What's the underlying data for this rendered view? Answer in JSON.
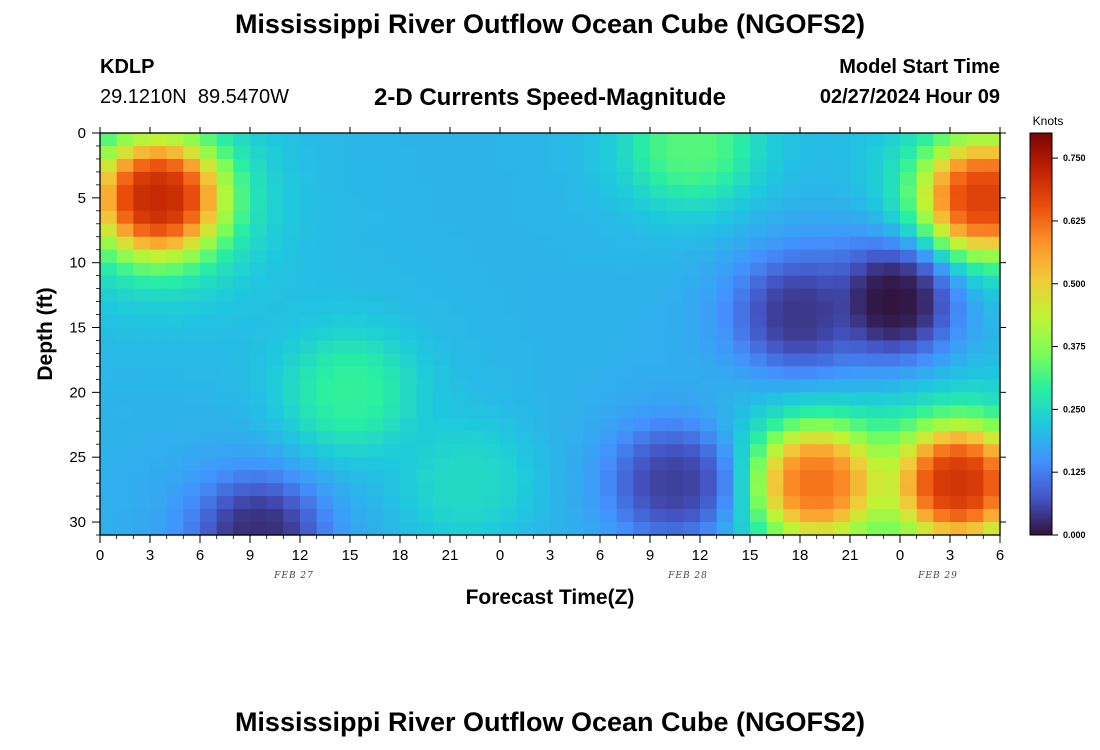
{
  "header": {
    "title": "Mississippi River Outflow Ocean Cube (NGOFS2)",
    "station": "KDLP",
    "coordinates": "29.1210N  89.5470W",
    "subtitle": "2-D Currents Speed-Magnitude",
    "start_label": "Model Start Time",
    "start_value": "02/27/2024 Hour 09"
  },
  "footer": {
    "title": "Mississippi River Outflow Ocean Cube (NGOFS2)"
  },
  "chart_data": {
    "type": "heatmap",
    "title": "2-D Currents Speed-Magnitude",
    "xlabel": "Forecast Time(Z)",
    "ylabel": "Depth (ft)",
    "x_range_hours_since_feb27_00z": [
      0,
      54
    ],
    "x_tick_labels": [
      "0",
      "3",
      "6",
      "9",
      "12",
      "15",
      "18",
      "21",
      "0",
      "3",
      "6",
      "9",
      "12",
      "15",
      "18",
      "21",
      "0",
      "3",
      "6"
    ],
    "date_labels": [
      {
        "label": "FEB 27",
        "under_tick": "12"
      },
      {
        "label": "FEB 28",
        "under_tick": "12"
      },
      {
        "label": "FEB 29",
        "under_tick": "3"
      }
    ],
    "y_range_ft": [
      0,
      31
    ],
    "y_reversed": true,
    "y_ticks": [
      0,
      5,
      10,
      15,
      20,
      25,
      30
    ],
    "colorbar": {
      "unit": "Knots",
      "range": [
        0,
        0.8
      ],
      "tick_values": [
        0,
        0.125,
        0.25,
        0.375,
        0.5,
        0.625,
        0.75
      ],
      "tick_labels": [
        "0.000",
        "0.125",
        "0.250",
        "0.375",
        "0.500",
        "0.625",
        "0.750"
      ],
      "colormap": [
        "#30123b",
        "#4454c4",
        "#4490fe",
        "#1fc8de",
        "#29efa2",
        "#7efd56",
        "#c1f334",
        "#f1ca3a",
        "#fe922a",
        "#ea4f0d",
        "#be2102",
        "#7a0403"
      ]
    },
    "features": [
      {
        "desc": "strong current",
        "x_center_h": 3.5,
        "depth_ft": 5,
        "speed_kn": 0.72
      },
      {
        "desc": "weak current",
        "x_center_h": 9.5,
        "depth_ft": 31,
        "speed_kn": 0.03
      },
      {
        "desc": "moderate",
        "x_center_h": 15,
        "depth_ft": 20,
        "speed_kn": 0.3
      },
      {
        "desc": "moderate",
        "x_center_h": 22,
        "depth_ft": 27,
        "speed_kn": 0.25
      },
      {
        "desc": "moderate",
        "x_center_h": 35.5,
        "depth_ft": 1,
        "speed_kn": 0.33
      },
      {
        "desc": "weak current",
        "x_center_h": 34.5,
        "depth_ft": 27,
        "speed_kn": 0.05
      },
      {
        "desc": "weak current",
        "x_center_h": 42,
        "depth_ft": 14,
        "speed_kn": 0.04
      },
      {
        "desc": "minimum",
        "x_center_h": 47.5,
        "depth_ft": 13,
        "speed_kn": 0.0
      },
      {
        "desc": "strong current",
        "x_center_h": 43,
        "depth_ft": 27,
        "speed_kn": 0.62
      },
      {
        "desc": "strong current",
        "x_center_h": 53,
        "depth_ft": 5,
        "speed_kn": 0.68
      },
      {
        "desc": "strong current",
        "x_center_h": 51.5,
        "depth_ft": 27,
        "speed_kn": 0.7
      }
    ]
  }
}
